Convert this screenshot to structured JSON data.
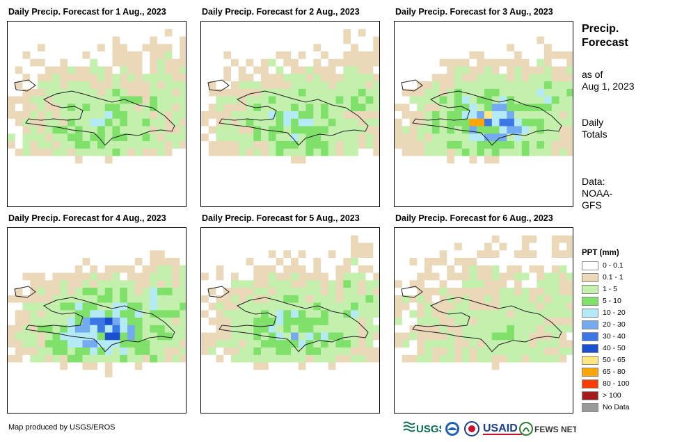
{
  "panels": [
    {
      "title": "Daily Precip. Forecast for 1 Aug., 2023",
      "seed": 11,
      "wet": 0.9
    },
    {
      "title": "Daily Precip. Forecast for 2 Aug., 2023",
      "seed": 23,
      "wet": 1.0
    },
    {
      "title": "Daily Precip. Forecast for 3 Aug., 2023",
      "seed": 37,
      "wet": 1.3
    },
    {
      "title": "Daily Precip. Forecast for 4 Aug., 2023",
      "seed": 41,
      "wet": 1.4
    },
    {
      "title": "Daily Precip. Forecast for 5 Aug., 2023",
      "seed": 53,
      "wet": 1.0
    },
    {
      "title": "Daily Precip. Forecast for 6 Aug., 2023",
      "seed": 67,
      "wet": 0.6
    }
  ],
  "side": {
    "title_line1": "Precip.",
    "title_line2": "Forecast",
    "asof_line1": "as of",
    "asof_line2": "Aug 1, 2023",
    "totals_line1": "Daily",
    "totals_line2": "Totals",
    "data_line1": "Data:",
    "data_line2": "NOAA-",
    "data_line3": "GFS"
  },
  "legend": {
    "title": "PPT (mm)",
    "items": [
      {
        "label": "0 - 0.1",
        "color": "#ffffff"
      },
      {
        "label": "0.1 - 1",
        "color": "#ead8b8"
      },
      {
        "label": "1 - 5",
        "color": "#c3f0ad"
      },
      {
        "label": "5 - 10",
        "color": "#7fe06a"
      },
      {
        "label": "10 - 20",
        "color": "#b4eaf5"
      },
      {
        "label": "20 - 30",
        "color": "#73aaf0"
      },
      {
        "label": "30 - 40",
        "color": "#3b78e6"
      },
      {
        "label": "40 - 50",
        "color": "#1a4fd0"
      },
      {
        "label": "50 - 65",
        "color": "#ffe680"
      },
      {
        "label": "65 - 80",
        "color": "#ffa500"
      },
      {
        "label": "80 - 100",
        "color": "#ff3c00"
      },
      {
        "label": "> 100",
        "color": "#a51a1a"
      },
      {
        "label": "No Data",
        "color": "#9a9a9a"
      }
    ]
  },
  "credit": "Map produced by USGS/EROS",
  "logos": {
    "usgs": "USGS",
    "usaid": "USAID",
    "fews": "FEWS NET"
  }
}
